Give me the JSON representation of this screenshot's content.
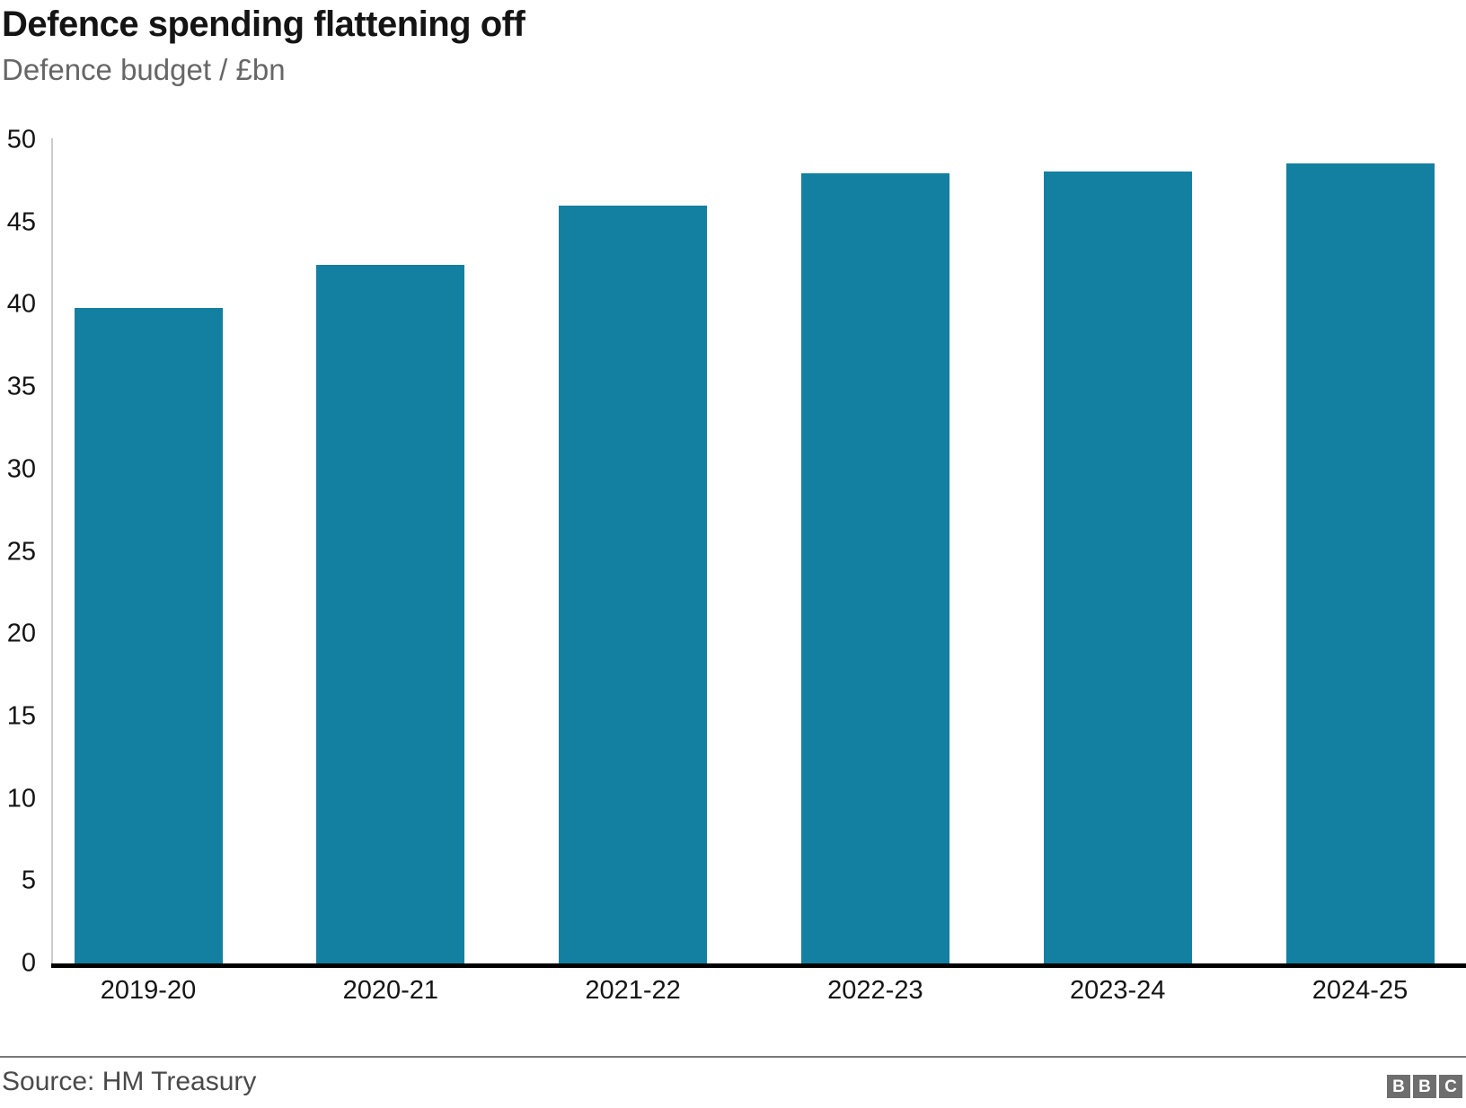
{
  "header": {
    "title": "Defence spending flattening off",
    "subtitle": "Defence budget / £bn"
  },
  "chart_data": {
    "type": "bar",
    "categories": [
      "2019-20",
      "2020-21",
      "2021-22",
      "2022-23",
      "2023-24",
      "2024-25"
    ],
    "values": [
      39.8,
      42.4,
      46.0,
      48.0,
      48.1,
      48.6
    ],
    "title": "Defence spending flattening off",
    "subtitle": "Defence budget / £bn",
    "xlabel": "",
    "ylabel": "Defence budget / £bn",
    "ylim": [
      0,
      50
    ],
    "yticks": [
      0,
      5,
      10,
      15,
      20,
      25,
      30,
      35,
      40,
      45,
      50
    ],
    "grid": false,
    "legend": false,
    "bar_color": "#1380A1",
    "source": "Source: HM Treasury"
  },
  "footer": {
    "source": "Source: HM Treasury",
    "logo_letters": [
      "B",
      "B",
      "C"
    ]
  },
  "colors": {
    "bar": "#1380A1",
    "title": "#141414",
    "subtitle": "#666666",
    "tick_label": "#141414",
    "y_axis_line": "#cccccc",
    "x_axis_line": "#000000",
    "divider": "#777777",
    "source_text": "#4a4a4a",
    "logo_square": "#6e6e6e"
  }
}
